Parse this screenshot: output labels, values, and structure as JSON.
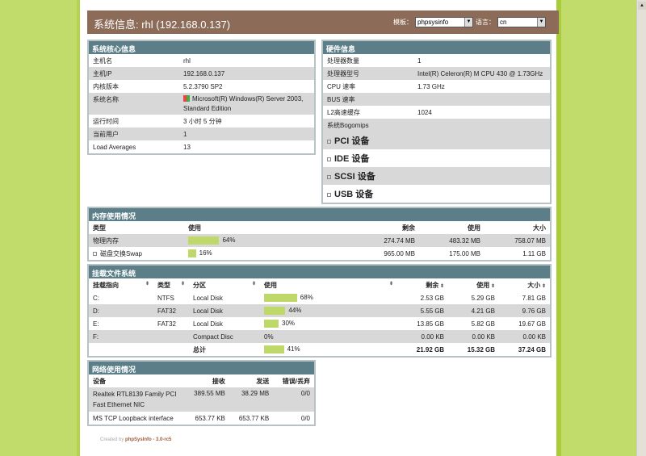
{
  "header": {
    "title": "系统信息: rhl (192.168.0.137)",
    "template_label": "模板：",
    "template_value": "phpsysinfo",
    "lang_label": "语言：",
    "lang_value": "cn"
  },
  "core": {
    "title": "系统核心信息",
    "rows": [
      [
        "主机名",
        "rhl"
      ],
      [
        "主机IP",
        "192.168.0.137"
      ],
      [
        "内核版本",
        "5.2.3790 SP2"
      ],
      [
        "系统名称",
        "Microsoft(R) Windows(R) Server 2003, Standard Edition"
      ],
      [
        "运行时间",
        "3 小时 5 分钟"
      ],
      [
        "当前用户",
        "1"
      ],
      [
        "Load Averages",
        "13"
      ]
    ]
  },
  "hardware": {
    "title": "硬件信息",
    "rows": [
      [
        "处理器数量",
        "1"
      ],
      [
        "处理器型号",
        "Intel(R) Celeron(R) M CPU 430 @ 1.73GHz"
      ],
      [
        "CPU 速率",
        "1.73 GHz"
      ],
      [
        "BUS 速率",
        ""
      ],
      [
        "L2高速缓存",
        "1024"
      ],
      [
        "系统Bogomips",
        ""
      ]
    ],
    "devices": [
      "PCI 设备",
      "IDE 设备",
      "SCSI 设备",
      "USB 设备"
    ]
  },
  "memory": {
    "title": "内存使用情况",
    "headers": [
      "类型",
      "使用",
      "剩余",
      "使用",
      "大小"
    ],
    "rows": [
      {
        "type": "物理内存",
        "percent": 64,
        "pct": "64%",
        "free": "274.74 MB",
        "used": "483.32 MB",
        "size": "758.07 MB"
      },
      {
        "type": "磁盘交换Swap",
        "percent": 16,
        "pct": "16%",
        "free": "965.00 MB",
        "used": "175.00 MB",
        "size": "1.11 GB"
      }
    ]
  },
  "fs": {
    "title": "挂载文件系统",
    "headers": [
      "挂载指向",
      "类型",
      "分区",
      "使用",
      "剩余",
      "使用",
      "大小"
    ],
    "rows": [
      {
        "mount": "C:",
        "type": "NTFS",
        "part": "Local Disk",
        "percent": 68,
        "pct": "68%",
        "free": "2.53 GB",
        "used": "5.29 GB",
        "size": "7.81 GB"
      },
      {
        "mount": "D:",
        "type": "FAT32",
        "part": "Local Disk",
        "percent": 44,
        "pct": "44%",
        "free": "5.55 GB",
        "used": "4.21 GB",
        "size": "9.76 GB"
      },
      {
        "mount": "E:",
        "type": "FAT32",
        "part": "Local Disk",
        "percent": 30,
        "pct": "30%",
        "free": "13.85 GB",
        "used": "5.82 GB",
        "size": "19.67 GB"
      },
      {
        "mount": "F:",
        "type": "",
        "part": "Compact Disc",
        "percent": 0,
        "pct": "0%",
        "free": "0.00 KB",
        "used": "0.00 KB",
        "size": "0.00 KB"
      }
    ],
    "total": {
      "label": "总计",
      "percent": 41,
      "pct": "41%",
      "free": "21.92 GB",
      "used": "15.32 GB",
      "size": "37.24 GB"
    }
  },
  "network": {
    "title": "网络使用情况",
    "headers": [
      "设备",
      "接收",
      "发送",
      "错误/丢弃"
    ],
    "rows": [
      [
        "Realtek RTL8139 Family PCI Fast Ethernet NIC",
        "389.55 MB",
        "38.29 MB",
        "0/0"
      ],
      [
        "MS TCP Loopback interface",
        "653.77 KB",
        "653.77 KB",
        "0/0"
      ]
    ]
  },
  "footer": {
    "prefix": "Created by ",
    "link": "phpSysInfo - 3.0-rc5"
  },
  "colors": {
    "header": "#8c6c58",
    "box_title": "#5b7e88",
    "bar": "#bfd86a",
    "background": "#c2dc6c"
  }
}
